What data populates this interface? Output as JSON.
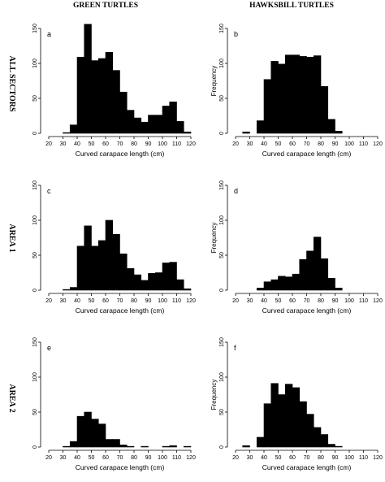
{
  "headers": {
    "col_green": "GREEN TURTLES",
    "col_hawksbill": "HAWKSBILL TURTLES",
    "row_all": "ALL SECTORS",
    "row_area1": "AREA 1",
    "row_area2": "AREA 2"
  },
  "chart_data": [
    {
      "id": "a",
      "type": "bar",
      "species": "green",
      "row": "all",
      "label": "a",
      "xlabel": "Curved carapace length (cm)",
      "ylabel": "",
      "xlim": [
        20,
        120
      ],
      "ylim": [
        0,
        150
      ],
      "bin_width": 5,
      "xticks": [
        20,
        30,
        40,
        50,
        60,
        70,
        80,
        90,
        100,
        110,
        120
      ],
      "xtick_labels": [
        "20",
        "30",
        "40",
        "50",
        "60",
        "70",
        "80",
        "90",
        "100",
        "110",
        "120"
      ],
      "yticks": [
        0,
        50,
        100,
        150
      ],
      "bin_starts": [
        20,
        25,
        30,
        35,
        40,
        45,
        50,
        55,
        60,
        65,
        70,
        75,
        80,
        85,
        90,
        95,
        100,
        105,
        110,
        115
      ],
      "values": [
        0,
        0,
        1,
        12,
        109,
        156,
        104,
        107,
        116,
        90,
        59,
        33,
        22,
        16,
        26,
        26,
        39,
        45,
        17,
        2
      ]
    },
    {
      "id": "b",
      "type": "bar",
      "species": "hawksbill",
      "row": "all",
      "label": "b",
      "xlabel": "Curved carapace length (cm)",
      "ylabel": "Frequency",
      "xlim": [
        20,
        120
      ],
      "ylim": [
        0,
        150
      ],
      "bin_width": 5,
      "xticks": [
        20,
        30,
        40,
        50,
        60,
        70,
        80,
        90,
        100,
        110,
        120
      ],
      "xtick_labels": [
        "20",
        "30",
        "40",
        "50",
        "60",
        "70",
        "80",
        "90",
        "100",
        "110",
        "120"
      ],
      "yticks": [
        0,
        50,
        100,
        150
      ],
      "bin_starts": [
        20,
        25,
        30,
        35,
        40,
        45,
        50,
        55,
        60,
        65,
        70,
        75,
        80,
        85,
        90,
        95,
        100,
        105,
        110,
        115
      ],
      "values": [
        0,
        2,
        0,
        18,
        77,
        103,
        99,
        112,
        112,
        110,
        109,
        111,
        67,
        20,
        3,
        0,
        0,
        0,
        0,
        0
      ]
    },
    {
      "id": "c",
      "type": "bar",
      "species": "green",
      "row": "area1",
      "label": "c",
      "xlabel": "Curved carapace length (cm)",
      "ylabel": "",
      "xlim": [
        20,
        120
      ],
      "ylim": [
        0,
        150
      ],
      "bin_width": 5,
      "xticks": [
        20,
        30,
        40,
        50,
        60,
        70,
        80,
        90,
        100,
        110,
        120
      ],
      "xtick_labels": [
        "20",
        "30",
        "40",
        "50",
        "60",
        "70",
        "80",
        "90",
        "100",
        "110",
        "120"
      ],
      "yticks": [
        0,
        50,
        100,
        150
      ],
      "bin_starts": [
        20,
        25,
        30,
        35,
        40,
        45,
        50,
        55,
        60,
        65,
        70,
        75,
        80,
        85,
        90,
        95,
        100,
        105,
        110,
        115
      ],
      "values": [
        0,
        0,
        1,
        4,
        63,
        92,
        63,
        71,
        100,
        80,
        52,
        31,
        22,
        14,
        24,
        25,
        39,
        40,
        15,
        2
      ]
    },
    {
      "id": "d",
      "type": "bar",
      "species": "hawksbill",
      "row": "area1",
      "label": "d",
      "xlabel": "Curved carapace length (cm)",
      "ylabel": "Frequency",
      "xlim": [
        20,
        120
      ],
      "ylim": [
        0,
        150
      ],
      "bin_width": 5,
      "xticks": [
        20,
        30,
        40,
        50,
        60,
        70,
        80,
        90,
        100,
        110,
        120
      ],
      "xtick_labels": [
        "20",
        "30",
        "40",
        "50",
        "60",
        "70",
        "80",
        "90",
        "100",
        "110",
        "120"
      ],
      "yticks": [
        0,
        50,
        100,
        150
      ],
      "bin_starts": [
        20,
        25,
        30,
        35,
        40,
        45,
        50,
        55,
        60,
        65,
        70,
        75,
        80,
        85,
        90,
        95,
        100,
        105,
        110,
        115
      ],
      "values": [
        0,
        0,
        0,
        3,
        12,
        15,
        20,
        19,
        23,
        44,
        56,
        76,
        45,
        17,
        3,
        0,
        0,
        0,
        0,
        0
      ]
    },
    {
      "id": "e",
      "type": "bar",
      "species": "green",
      "row": "area2",
      "label": "e",
      "xlabel": "Curved carapace length (cm)",
      "ylabel": "",
      "xlim": [
        20,
        120
      ],
      "ylim": [
        0,
        150
      ],
      "bin_width": 5,
      "xticks": [
        20,
        30,
        40,
        50,
        60,
        70,
        80,
        90,
        100,
        110,
        120
      ],
      "xtick_labels": [
        "20",
        "30",
        "40",
        "50",
        "60",
        "70",
        "80",
        "90",
        "100",
        "110",
        "120"
      ],
      "yticks": [
        0,
        50,
        100,
        150
      ],
      "bin_starts": [
        20,
        25,
        30,
        35,
        40,
        45,
        50,
        55,
        60,
        65,
        70,
        75,
        80,
        85,
        90,
        95,
        100,
        105,
        110,
        115
      ],
      "values": [
        0,
        0,
        1,
        8,
        44,
        50,
        40,
        33,
        11,
        11,
        3,
        1,
        0,
        1,
        0,
        0,
        1,
        2,
        0,
        1
      ]
    },
    {
      "id": "f",
      "type": "bar",
      "species": "hawksbill",
      "row": "area2",
      "label": "f",
      "xlabel": "Curved carapace length (cm)",
      "ylabel": "Frequency",
      "xlim": [
        20,
        120
      ],
      "ylim": [
        0,
        150
      ],
      "bin_width": 5,
      "xticks": [
        20,
        30,
        40,
        50,
        60,
        70,
        80,
        90,
        100,
        110,
        120
      ],
      "xtick_labels": [
        "20",
        "30",
        "40",
        "50",
        "60",
        "70",
        "80",
        "90",
        "100",
        "110",
        "120"
      ],
      "yticks": [
        0,
        50,
        100,
        150
      ],
      "bin_starts": [
        20,
        25,
        30,
        35,
        40,
        45,
        50,
        55,
        60,
        65,
        70,
        75,
        80,
        85,
        90,
        95,
        100,
        105,
        110,
        115
      ],
      "values": [
        0,
        2,
        0,
        14,
        62,
        91,
        75,
        90,
        85,
        65,
        47,
        28,
        18,
        4,
        1,
        0,
        0,
        0,
        0,
        0
      ]
    }
  ]
}
